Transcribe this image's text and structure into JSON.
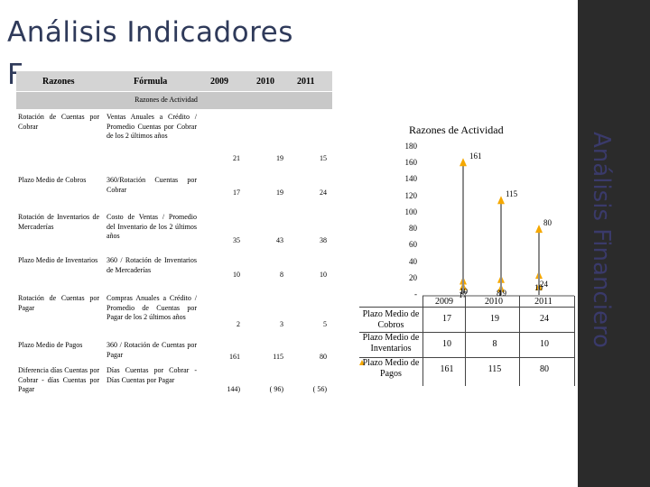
{
  "slide": {
    "title": "Análisis Indicadores",
    "title_ghost": "F",
    "side_title": "Análisis Financiero"
  },
  "table": {
    "headers": [
      "Razones",
      "Fórmula",
      "2009",
      "2010",
      "2011"
    ],
    "section": "Razones de Actividad",
    "rows": [
      {
        "name": "Rotación de Cuentas por Cobrar",
        "formula": "Ventas Anuales a Crédito / Promedio Cuentas por Cobrar de los 2 últimos años",
        "v2009": "21",
        "v2010": "19",
        "v2011": "15"
      },
      {
        "name": "Plazo Medio de Cobros",
        "formula": "360/Rotación Cuentas por Cobrar",
        "v2009": "17",
        "v2010": "19",
        "v2011": "24"
      },
      {
        "name": "Rotación de Inventarios de Mercaderías",
        "formula": "Costo de Ventas / Promedio del Inventario de los 2 últimos años",
        "v2009": "35",
        "v2010": "43",
        "v2011": "38"
      },
      {
        "name": "Plazo Medio de Inventarios",
        "formula": "360 / Rotación de Inventarios de Mercaderías",
        "v2009": "10",
        "v2010": "8",
        "v2011": "10"
      },
      {
        "name": "Rotación de Cuentas por Pagar",
        "formula": "Compras Anuales a Crédito / Promedio de Cuentas por Pagar de los 2 últimos años",
        "v2009": "2",
        "v2010": "3",
        "v2011": "5"
      },
      {
        "name": "Plazo Medio de Pagos",
        "formula": "360 / Rotación de Cuentas por Pagar",
        "v2009": "161",
        "v2010": "115",
        "v2011": "80"
      },
      {
        "name": "Diferencia días Cuentas por Cobrar - días Cuentas por Pagar",
        "formula": "Días Cuentas por Cobrar - Días Cuentas por Pagar",
        "v2009": "144)",
        "v2010": "( 96)",
        "v2011": "( 56)"
      }
    ]
  },
  "chart_data": {
    "type": "line",
    "title": "Razones de Actividad",
    "categories": [
      "2009",
      "2010",
      "2011"
    ],
    "ylim": [
      0,
      180
    ],
    "yticks": [
      "180",
      "160",
      "140",
      "120",
      "100",
      "80",
      "60",
      "40",
      "20",
      "-"
    ],
    "legend": "bottom-left data table",
    "series": [
      {
        "name": "Plazo Medio de Cobros",
        "values": [
          17,
          19,
          24
        ],
        "labels": [
          "17",
          "19",
          "24"
        ]
      },
      {
        "name": "Plazo Medio de Inventarios",
        "values": [
          10,
          8,
          10
        ],
        "labels": [
          "10",
          "8",
          "10"
        ]
      },
      {
        "name": "Plazo Medio de Pagos",
        "values": [
          161,
          115,
          80
        ],
        "labels": [
          "161",
          "115",
          "80"
        ]
      }
    ],
    "data_table": {
      "rows": [
        {
          "series": "Plazo Medio de Cobros",
          "values": [
            "17",
            "19",
            "24"
          ]
        },
        {
          "series": "Plazo Medio de Inventarios",
          "values": [
            "10",
            "8",
            "10"
          ]
        },
        {
          "series": "Plazo Medio de Pagos",
          "values": [
            "161",
            "115",
            "80"
          ]
        }
      ]
    },
    "colors": {
      "marker": "#f5a800",
      "line": "#8c8c8c"
    }
  }
}
